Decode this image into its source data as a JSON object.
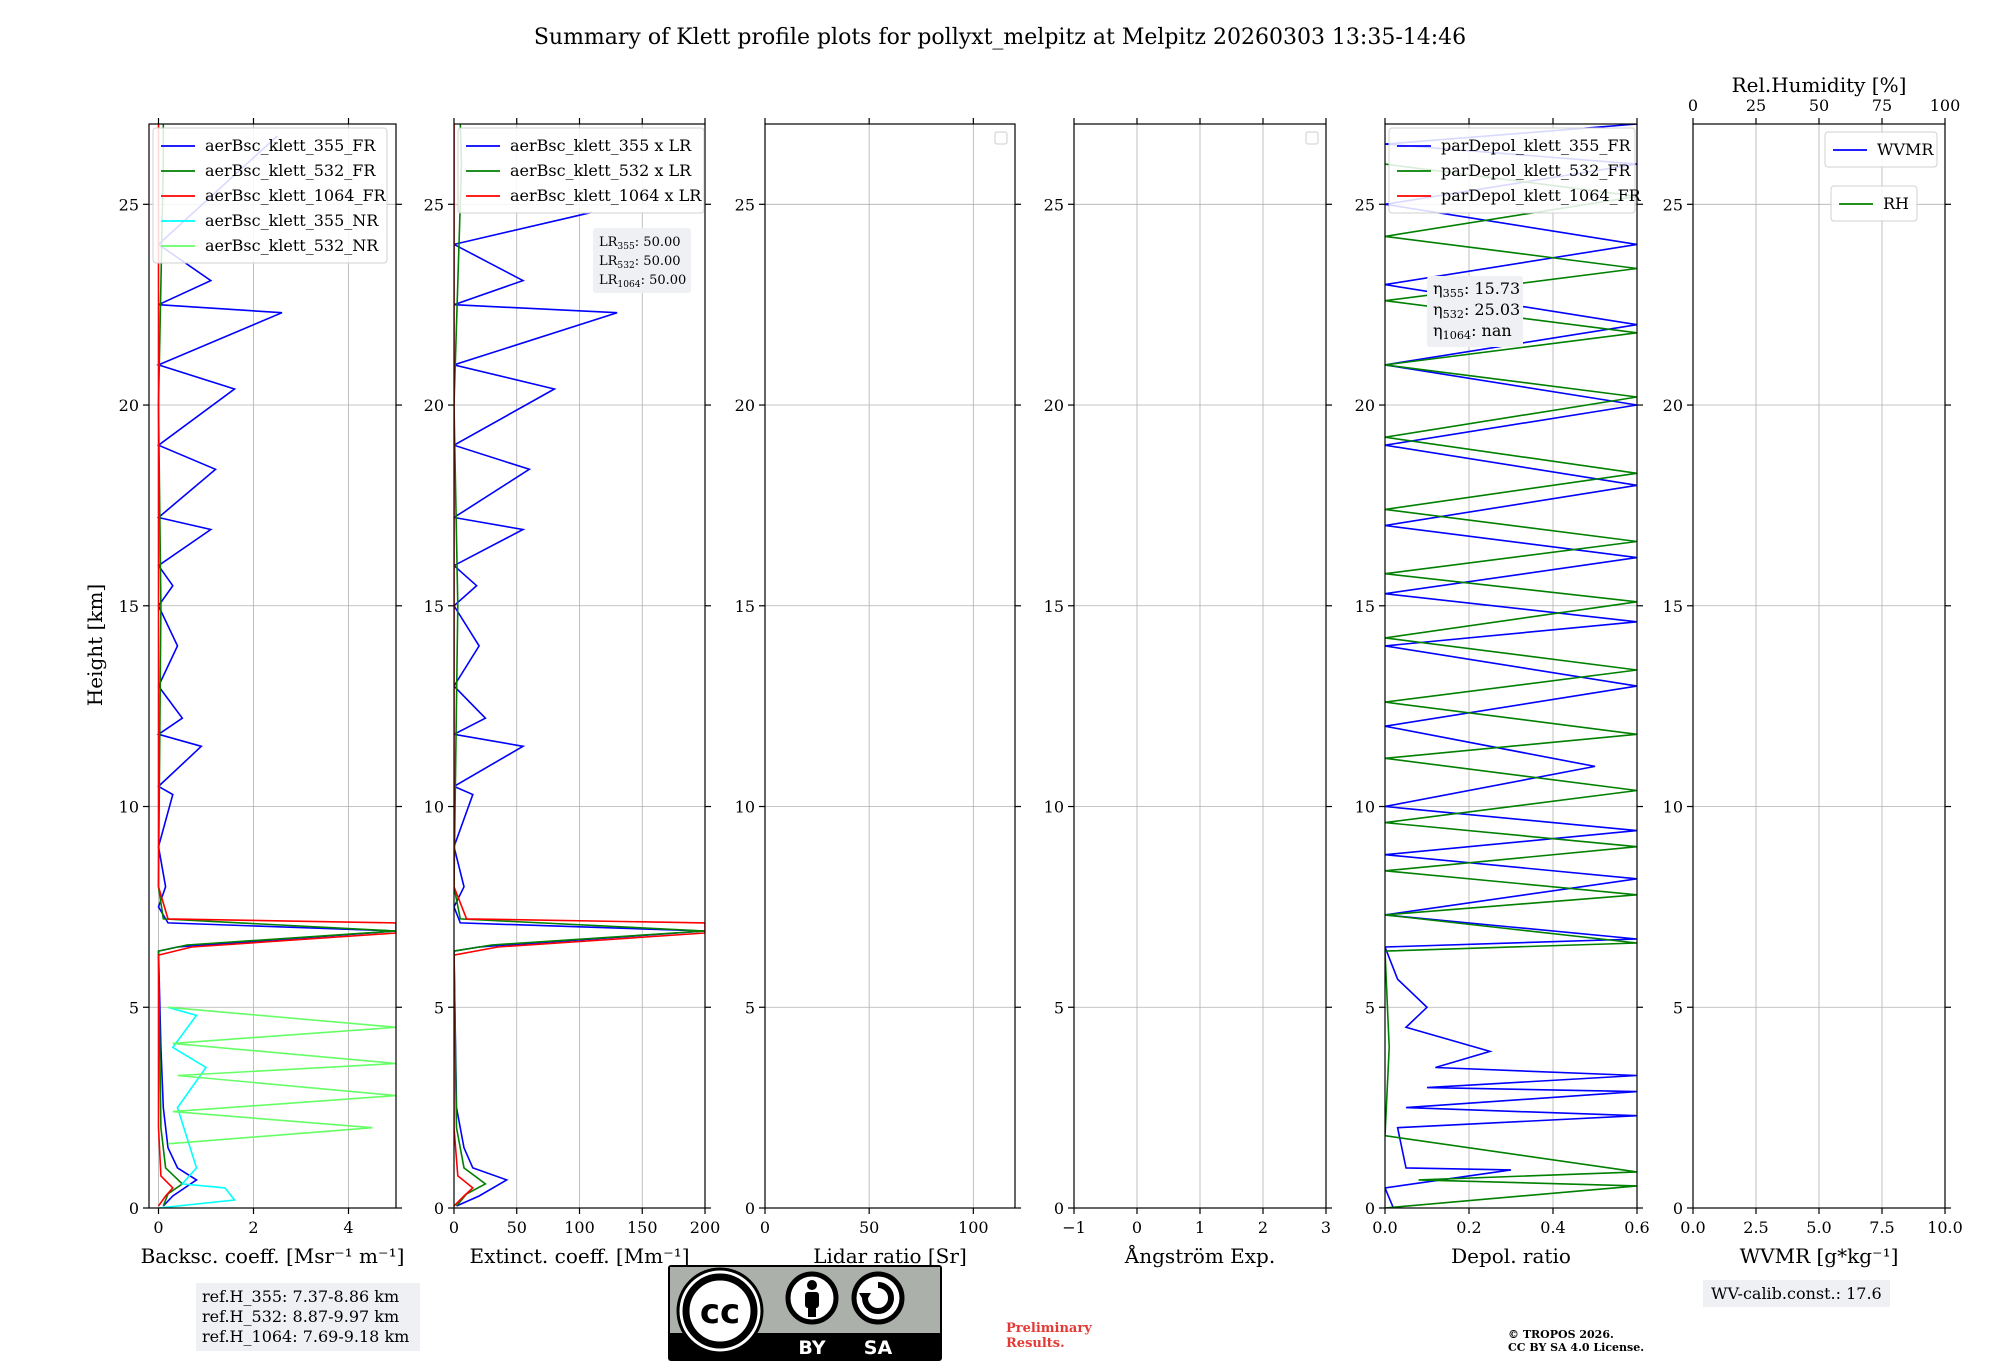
{
  "title": "Summary of Klett profile plots for pollyxt_melpitz at Melpitz 20260303 13:35-14:46",
  "ylabel": "Height [km]",
  "footer": {
    "ref_lines": [
      "ref.H_355: 7.37-8.86 km",
      "ref.H_532: 8.87-9.97 km",
      "ref.H_1064: 7.69-9.18 km"
    ],
    "wv_calib": "WV-calib.const.: 17.6",
    "preliminary": [
      "Preliminary",
      "Results."
    ],
    "copyright": [
      "© TROPOS 2026.",
      "CC BY SA 4.0 License."
    ],
    "cc_labels": [
      "BY",
      "SA"
    ]
  },
  "colors": {
    "blue": "#0000ff",
    "green": "#008000",
    "red": "#ff0000",
    "cyan": "#00ffff",
    "lightgreen": "#66ff66",
    "lavender": "#c8c8f0"
  },
  "chart_data": [
    {
      "type": "line",
      "xlabel": "Backsc. coeff. [Msr⁻¹ m⁻¹]",
      "xlim": [
        -0.2,
        5
      ],
      "ylim": [
        0,
        27
      ],
      "xticks": [
        0,
        2,
        4
      ],
      "yticks": [
        0,
        5,
        10,
        15,
        20,
        25
      ],
      "legend": [
        "aerBsc_klett_355_FR",
        "aerBsc_klett_532_FR",
        "aerBsc_klett_1064_FR",
        "aerBsc_klett_355_NR",
        "aerBsc_klett_532_NR"
      ],
      "series": [
        {
          "name": "aerBsc_klett_355_FR",
          "color": "blue",
          "points": [
            [
              0.1,
              0.05
            ],
            [
              0.3,
              0.3
            ],
            [
              0.8,
              0.7
            ],
            [
              0.4,
              1.0
            ],
            [
              0.2,
              1.5
            ],
            [
              0.1,
              2.5
            ],
            [
              0.05,
              4
            ],
            [
              0.0,
              6.4
            ],
            [
              0.4,
              6.5
            ],
            [
              5,
              6.9
            ],
            [
              0.2,
              7.1
            ],
            [
              0.0,
              7.5
            ],
            [
              0.15,
              8.0
            ],
            [
              0.0,
              9.0
            ],
            [
              0.3,
              10.3
            ],
            [
              0.0,
              10.5
            ],
            [
              0.9,
              11.5
            ],
            [
              0.0,
              11.8
            ],
            [
              0.5,
              12.2
            ],
            [
              0.0,
              13.0
            ],
            [
              0.4,
              14.0
            ],
            [
              0.0,
              15.0
            ],
            [
              0.3,
              15.5
            ],
            [
              0.0,
              16.0
            ],
            [
              1.1,
              16.9
            ],
            [
              0.0,
              17.2
            ],
            [
              1.2,
              18.4
            ],
            [
              0.0,
              19.0
            ],
            [
              1.6,
              20.4
            ],
            [
              0.0,
              21.0
            ],
            [
              2.6,
              22.3
            ],
            [
              0.0,
              22.5
            ],
            [
              1.1,
              23.1
            ],
            [
              0.0,
              24.0
            ],
            [
              2.5,
              26.7
            ]
          ]
        },
        {
          "name": "aerBsc_klett_532_FR",
          "color": "green",
          "points": [
            [
              0.1,
              0.05
            ],
            [
              0.2,
              0.35
            ],
            [
              0.5,
              0.6
            ],
            [
              0.15,
              1.0
            ],
            [
              0.05,
              2.0
            ],
            [
              0.0,
              6.4
            ],
            [
              0.6,
              6.55
            ],
            [
              5,
              6.9
            ],
            [
              0.1,
              7.2
            ],
            [
              0.0,
              8.0
            ],
            [
              0.05,
              15
            ],
            [
              0.0,
              20
            ],
            [
              0.1,
              26
            ],
            [
              0.1,
              27
            ]
          ]
        },
        {
          "name": "aerBsc_klett_1064_FR",
          "color": "red",
          "points": [
            [
              0.0,
              0.05
            ],
            [
              0.15,
              0.3
            ],
            [
              0.3,
              0.5
            ],
            [
              0.05,
              0.8
            ],
            [
              0.0,
              2.0
            ],
            [
              0.0,
              6.3
            ],
            [
              0.7,
              6.5
            ],
            [
              5,
              6.85
            ],
            [
              5,
              7.1
            ],
            [
              0.2,
              7.2
            ],
            [
              0.0,
              8.0
            ],
            [
              0.0,
              27
            ]
          ]
        },
        {
          "name": "aerBsc_klett_355_NR",
          "color": "cyan",
          "points": [
            [
              0.0,
              0.0
            ],
            [
              1.6,
              0.2
            ],
            [
              1.4,
              0.5
            ],
            [
              0.5,
              0.6
            ],
            [
              0.8,
              1.0
            ],
            [
              0.4,
              2.5
            ],
            [
              1.0,
              3.5
            ],
            [
              0.3,
              4.0
            ],
            [
              0.8,
              4.8
            ],
            [
              0.2,
              5.0
            ]
          ]
        },
        {
          "name": "aerBsc_klett_532_NR",
          "color": "lightgreen",
          "points": [
            [
              0.2,
              1.6
            ],
            [
              4.5,
              2.0
            ],
            [
              0.3,
              2.4
            ],
            [
              5,
              2.8
            ],
            [
              0.4,
              3.3
            ],
            [
              5,
              3.6
            ],
            [
              0.3,
              4.1
            ],
            [
              5,
              4.5
            ],
            [
              0.2,
              5.0
            ]
          ]
        }
      ],
      "refs": [
        "ref.H_355: 7.37-8.86 km",
        "ref.H_532: 8.87-9.97 km",
        "ref.H_1064: 7.69-9.18 km"
      ]
    },
    {
      "type": "line",
      "xlabel": "Extinct. coeff. [Mm⁻¹]",
      "xlim": [
        0,
        200
      ],
      "ylim": [
        0,
        27
      ],
      "xticks": [
        0,
        50,
        100,
        150,
        200
      ],
      "yticks": [
        0,
        5,
        10,
        15,
        20,
        25
      ],
      "legend": [
        "aerBsc_klett_355 x LR",
        "aerBsc_klett_532 x LR",
        "aerBsc_klett_1064 x LR"
      ],
      "annotation": [
        "LR355: 50.00",
        "LR532: 50.00",
        "LR1064: 50.00"
      ],
      "series": [
        {
          "name": "aerBsc_klett_355 x LR",
          "color": "blue",
          "points": [
            [
              2,
              0.05
            ],
            [
              20,
              0.3
            ],
            [
              42,
              0.7
            ],
            [
              15,
              1.0
            ],
            [
              8,
              1.5
            ],
            [
              2,
              2.5
            ],
            [
              0,
              6.4
            ],
            [
              20,
              6.5
            ],
            [
              200,
              6.9
            ],
            [
              5,
              7.1
            ],
            [
              0,
              7.5
            ],
            [
              8,
              8.0
            ],
            [
              0,
              9.0
            ],
            [
              15,
              10.3
            ],
            [
              0,
              10.5
            ],
            [
              55,
              11.5
            ],
            [
              0,
              11.8
            ],
            [
              25,
              12.2
            ],
            [
              0,
              13.0
            ],
            [
              20,
              14.0
            ],
            [
              0,
              15.0
            ],
            [
              18,
              15.5
            ],
            [
              0,
              16.0
            ],
            [
              55,
              16.9
            ],
            [
              0,
              17.2
            ],
            [
              60,
              18.4
            ],
            [
              0,
              19.0
            ],
            [
              80,
              20.4
            ],
            [
              0,
              21.0
            ],
            [
              130,
              22.3
            ],
            [
              0,
              22.5
            ],
            [
              55,
              23.1
            ],
            [
              0,
              24.0
            ],
            [
              110,
              24.8
            ]
          ]
        },
        {
          "name": "aerBsc_klett_532 x LR",
          "color": "green",
          "points": [
            [
              2,
              0.05
            ],
            [
              10,
              0.35
            ],
            [
              25,
              0.6
            ],
            [
              8,
              1.0
            ],
            [
              2,
              2.0
            ],
            [
              0,
              6.4
            ],
            [
              30,
              6.55
            ],
            [
              200,
              6.9
            ],
            [
              5,
              7.2
            ],
            [
              0,
              8.0
            ],
            [
              3,
              15
            ],
            [
              0,
              20
            ],
            [
              6,
              26
            ],
            [
              5,
              27
            ]
          ]
        },
        {
          "name": "aerBsc_klett_1064 x LR",
          "color": "red",
          "points": [
            [
              0,
              0.05
            ],
            [
              8,
              0.3
            ],
            [
              15,
              0.5
            ],
            [
              3,
              0.8
            ],
            [
              0,
              2.0
            ],
            [
              0,
              6.3
            ],
            [
              35,
              6.5
            ],
            [
              200,
              6.85
            ],
            [
              200,
              7.1
            ],
            [
              10,
              7.2
            ],
            [
              0,
              8.0
            ],
            [
              0,
              27
            ]
          ]
        }
      ]
    },
    {
      "type": "line",
      "xlabel": "Lidar ratio [Sr]",
      "xlim": [
        0,
        120
      ],
      "ylim": [
        0,
        27
      ],
      "xticks": [
        0,
        50,
        100
      ],
      "yticks": [
        0,
        5,
        10,
        15,
        20,
        25
      ],
      "series": []
    },
    {
      "type": "line",
      "xlabel": "Ångström Exp.",
      "xlim": [
        -1,
        3
      ],
      "ylim": [
        0,
        27
      ],
      "xticks": [
        -1,
        0,
        1,
        2,
        3
      ],
      "yticks": [
        0,
        5,
        10,
        15,
        20,
        25
      ],
      "series": []
    },
    {
      "type": "line",
      "xlabel": "Depol. ratio",
      "xlim": [
        0,
        0.6
      ],
      "ylim": [
        0,
        27
      ],
      "xticks": [
        0.0,
        0.2,
        0.4,
        0.6
      ],
      "yticks": [
        0,
        5,
        10,
        15,
        20,
        25
      ],
      "legend": [
        "parDepol_klett_355_FR",
        "parDepol_klett_532_FR",
        "parDepol_klett_1064_FR"
      ],
      "annotation": [
        "η355: 15.73",
        "η532: 25.03",
        "η1064: nan"
      ],
      "series": [
        {
          "name": "parDepol_klett_355_FR",
          "color": "blue",
          "points": [
            [
              0.02,
              0.0
            ],
            [
              0.0,
              0.5
            ],
            [
              0.3,
              0.95
            ],
            [
              0.05,
              1.0
            ],
            [
              0.03,
              2.0
            ],
            [
              0.6,
              2.3
            ],
            [
              0.05,
              2.5
            ],
            [
              0.6,
              2.9
            ],
            [
              0.1,
              3.0
            ],
            [
              0.6,
              3.3
            ],
            [
              0.12,
              3.5
            ],
            [
              0.25,
              3.9
            ],
            [
              0.05,
              4.5
            ],
            [
              0.1,
              5.0
            ],
            [
              0.03,
              5.7
            ],
            [
              0.0,
              6.5
            ],
            [
              0.6,
              6.7
            ],
            [
              0.3,
              7.0
            ],
            [
              0.0,
              7.3
            ],
            [
              0.6,
              8.2
            ],
            [
              0.0,
              8.8
            ],
            [
              0.6,
              9.4
            ],
            [
              0.0,
              10
            ],
            [
              0.5,
              11
            ],
            [
              0.0,
              12
            ],
            [
              0.6,
              13
            ],
            [
              0.0,
              14
            ],
            [
              0.6,
              14.6
            ],
            [
              0.0,
              15.3
            ],
            [
              0.6,
              16.2
            ],
            [
              0.0,
              17
            ],
            [
              0.6,
              18
            ],
            [
              0.0,
              19
            ],
            [
              0.6,
              20
            ],
            [
              0.0,
              21
            ],
            [
              0.6,
              22
            ],
            [
              0.0,
              23
            ],
            [
              0.6,
              24
            ],
            [
              0.0,
              25
            ],
            [
              0.6,
              26
            ],
            [
              0.0,
              26.5
            ],
            [
              0.6,
              27
            ]
          ]
        },
        {
          "name": "parDepol_klett_532_FR",
          "color": "green",
          "points": [
            [
              0.0,
              0.0
            ],
            [
              0.6,
              0.55
            ],
            [
              0.08,
              0.7
            ],
            [
              0.6,
              0.9
            ],
            [
              0.0,
              1.8
            ],
            [
              0.01,
              4.0
            ],
            [
              0.0,
              6.4
            ],
            [
              0.6,
              6.6
            ],
            [
              0.3,
              6.95
            ],
            [
              0.0,
              7.3
            ],
            [
              0.6,
              7.8
            ],
            [
              0.0,
              8.4
            ],
            [
              0.6,
              9.0
            ],
            [
              0.0,
              9.6
            ],
            [
              0.6,
              10.4
            ],
            [
              0.0,
              11.2
            ],
            [
              0.6,
              11.8
            ],
            [
              0.0,
              12.6
            ],
            [
              0.6,
              13.4
            ],
            [
              0.0,
              14.2
            ],
            [
              0.6,
              15.1
            ],
            [
              0.0,
              15.8
            ],
            [
              0.6,
              16.6
            ],
            [
              0.0,
              17.4
            ],
            [
              0.6,
              18.3
            ],
            [
              0.0,
              19.2
            ],
            [
              0.6,
              20.2
            ],
            [
              0.0,
              21.0
            ],
            [
              0.6,
              21.8
            ],
            [
              0.0,
              22.6
            ],
            [
              0.6,
              23.4
            ],
            [
              0.0,
              24.2
            ],
            [
              0.6,
              25.2
            ],
            [
              0.0,
              26.0
            ]
          ]
        },
        {
          "name": "parDepol_klett_1064_FR",
          "color": "red",
          "points": []
        }
      ]
    },
    {
      "type": "line",
      "xlabel": "WVMR [g*kg⁻¹]",
      "top_xlabel": "Rel.Humidity [%]",
      "xlim": [
        0,
        10
      ],
      "ylim": [
        0,
        27
      ],
      "xticks": [
        0.0,
        2.5,
        5.0,
        7.5,
        10.0
      ],
      "top_ticks": [
        0,
        25,
        50,
        75,
        100
      ],
      "yticks": [
        0,
        5,
        10,
        15,
        20,
        25
      ],
      "legend": [
        "WVMR"
      ],
      "legend2": [
        "RH"
      ],
      "series": []
    }
  ]
}
